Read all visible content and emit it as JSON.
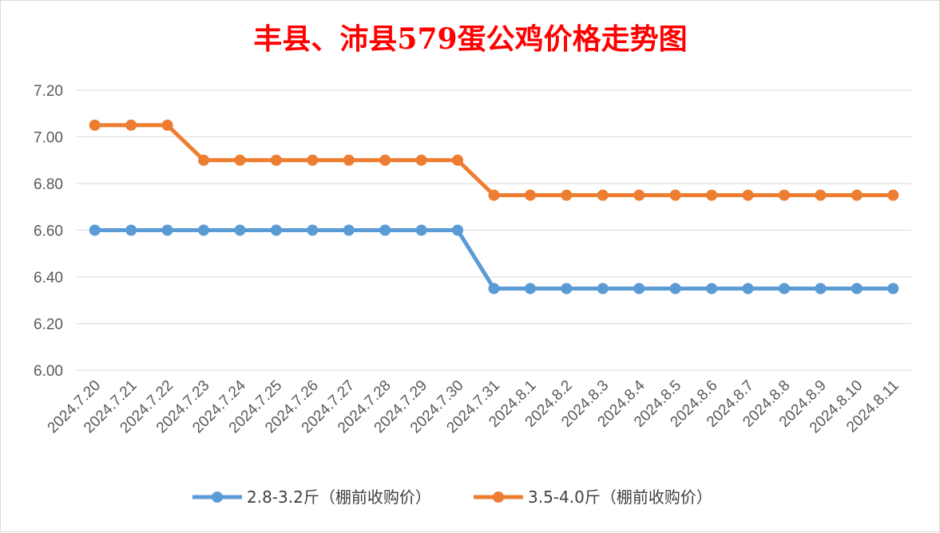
{
  "chart_data": {
    "type": "line",
    "title": "丰县、沛县579蛋公鸡价格走势图",
    "title_color": "#ff0000",
    "categories": [
      "2024.7.20",
      "2024.7.21",
      "2024.7.22",
      "2024.7.23",
      "2024.7.24",
      "2024.7.25",
      "2024.7.26",
      "2024.7.27",
      "2024.7.28",
      "2024.7.29",
      "2024.7.30",
      "2024.7.31",
      "2024.8.1",
      "2024.8.2",
      "2024.8.3",
      "2024.8.4",
      "2024.8.5",
      "2024.8.6",
      "2024.8.7",
      "2024.8.8",
      "2024.8.9",
      "2024.8.10",
      "2024.8.11"
    ],
    "series": [
      {
        "name": "2.8-3.2斤（棚前收购价）",
        "color": "#5b9bd5",
        "values": [
          6.6,
          6.6,
          6.6,
          6.6,
          6.6,
          6.6,
          6.6,
          6.6,
          6.6,
          6.6,
          6.6,
          6.35,
          6.35,
          6.35,
          6.35,
          6.35,
          6.35,
          6.35,
          6.35,
          6.35,
          6.35,
          6.35,
          6.35
        ]
      },
      {
        "name": "3.5-4.0斤（棚前收购价）",
        "color": "#ed7d31",
        "values": [
          7.05,
          7.05,
          7.05,
          6.9,
          6.9,
          6.9,
          6.9,
          6.9,
          6.9,
          6.9,
          6.9,
          6.75,
          6.75,
          6.75,
          6.75,
          6.75,
          6.75,
          6.75,
          6.75,
          6.75,
          6.75,
          6.75,
          6.75
        ]
      }
    ],
    "ylim": [
      6.0,
      7.2
    ],
    "yticks": [
      "6.00",
      "6.20",
      "6.40",
      "6.60",
      "6.80",
      "7.00",
      "7.20"
    ],
    "grid": true,
    "legend": "bottom"
  }
}
